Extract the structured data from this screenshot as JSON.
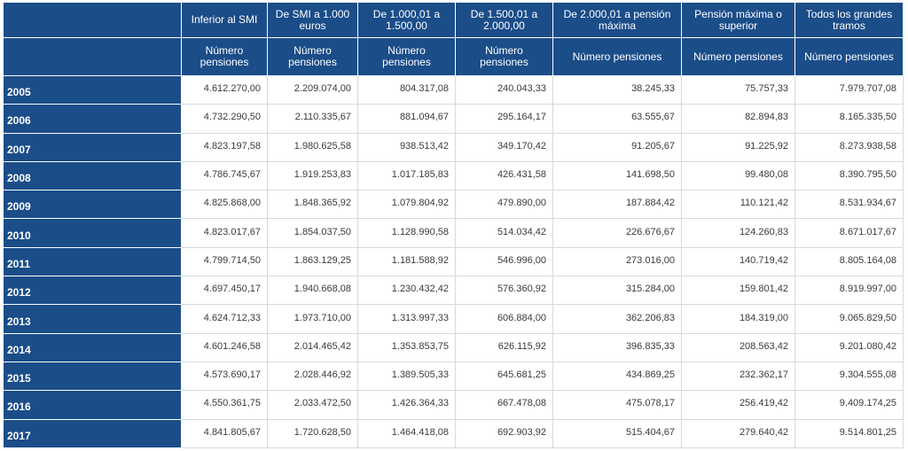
{
  "headers": [
    "Inferior al SMI",
    "De SMI a 1.000 euros",
    "De 1.000,01 a 1.500,00",
    "De 1.500,01 a 2.000,00",
    "De 2.000,01 a pensión máxima",
    "Pensión máxima o superior",
    "Todos los grandes tramos"
  ],
  "subheaders": [
    "Número pensiones",
    "Número pensiones",
    "Número pensiones",
    "Número pensiones",
    "Número pensiones",
    "Número pensiones",
    "Número pensiones"
  ],
  "rows": [
    {
      "year": "2005",
      "values": [
        "4.612.270,00",
        "2.209.074,00",
        "804.317,08",
        "240.043,33",
        "38.245,33",
        "75.757,33",
        "7.979.707,08"
      ]
    },
    {
      "year": "2006",
      "values": [
        "4.732.290,50",
        "2.110.335,67",
        "881.094,67",
        "295.164,17",
        "63.555,67",
        "82.894,83",
        "8.165.335,50"
      ]
    },
    {
      "year": "2007",
      "values": [
        "4.823.197,58",
        "1.980.625,58",
        "938.513,42",
        "349.170,42",
        "91.205,67",
        "91.225,92",
        "8.273.938,58"
      ]
    },
    {
      "year": "2008",
      "values": [
        "4.786.745,67",
        "1.919.253,83",
        "1.017.185,83",
        "426.431,58",
        "141.698,50",
        "99.480,08",
        "8.390.795,50"
      ]
    },
    {
      "year": "2009",
      "values": [
        "4.825.868,00",
        "1.848.365,92",
        "1.079.804,92",
        "479.890,00",
        "187.884,42",
        "110.121,42",
        "8.531.934,67"
      ]
    },
    {
      "year": "2010",
      "values": [
        "4.823.017,67",
        "1.854.037,50",
        "1.128.990,58",
        "514.034,42",
        "226.676,67",
        "124.260,83",
        "8.671.017,67"
      ]
    },
    {
      "year": "2011",
      "values": [
        "4.799.714,50",
        "1.863.129,25",
        "1.181.588,92",
        "546.996,00",
        "273.016,00",
        "140.719,42",
        "8.805.164,08"
      ]
    },
    {
      "year": "2012",
      "values": [
        "4.697.450,17",
        "1.940.668,08",
        "1.230.432,42",
        "576.360,92",
        "315.284,00",
        "159.801,42",
        "8.919.997,00"
      ]
    },
    {
      "year": "2013",
      "values": [
        "4.624.712,33",
        "1.973.710,00",
        "1.313.997,33",
        "606.884,00",
        "362.206,83",
        "184.319,00",
        "9.065.829,50"
      ]
    },
    {
      "year": "2014",
      "values": [
        "4.601.246,58",
        "2.014.465,42",
        "1.353.853,75",
        "626.115,92",
        "396.835,33",
        "208.563,42",
        "9.201.080,42"
      ]
    },
    {
      "year": "2015",
      "values": [
        "4.573.690,17",
        "2.028.446,92",
        "1.389.505,33",
        "645.681,25",
        "434.869,25",
        "232.362,17",
        "9.304.555,08"
      ]
    },
    {
      "year": "2016",
      "values": [
        "4.550.361,75",
        "2.033.472,50",
        "1.426.364,33",
        "667.478,08",
        "475.078,17",
        "256.419,42",
        "9.409.174,25"
      ]
    },
    {
      "year": "2017",
      "values": [
        "4.841.805,67",
        "1.720.628,50",
        "1.464.418,08",
        "692.903,92",
        "515.404,67",
        "279.640,42",
        "9.514.801,25"
      ]
    }
  ]
}
